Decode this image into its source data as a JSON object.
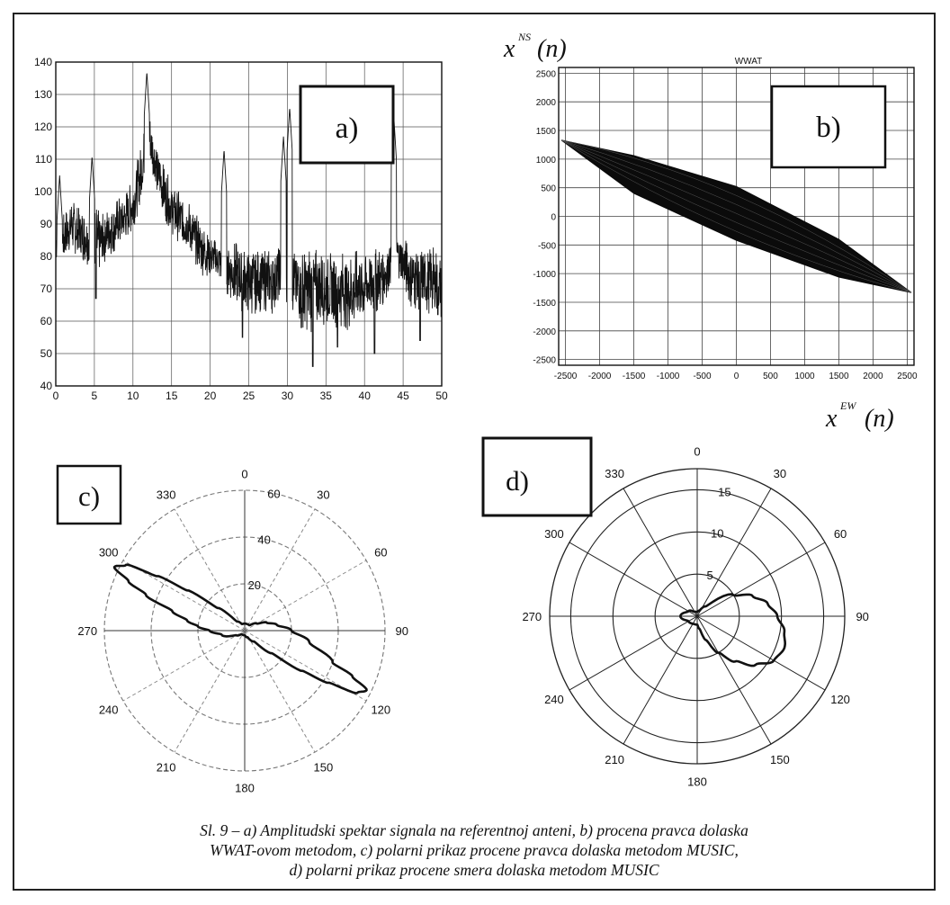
{
  "caption": {
    "line1": "Sl. 9 – a) Amplitudski spektar signala na referentnoj anteni, b) procena pravca dolaska",
    "line2": "WWAT-ovom  metodom, c) polarni prikaz procene pravca dolaska metodom MUSIC,",
    "line3": "d) polarni prikaz procene smera dolaska metodom MUSIC"
  },
  "chart_data": [
    {
      "id": "a",
      "panel_label": "a)",
      "type": "line",
      "xlim": [
        0,
        50
      ],
      "ylim": [
        40,
        140
      ],
      "xticks": [
        0,
        5,
        10,
        15,
        20,
        25,
        30,
        35,
        40,
        45,
        50
      ],
      "yticks": [
        40,
        50,
        60,
        70,
        80,
        90,
        100,
        110,
        120,
        130,
        140
      ],
      "grid": true,
      "envelope": {
        "x": [
          0,
          1,
          2,
          3,
          4,
          5,
          6,
          7,
          8,
          9,
          10,
          11,
          12,
          13,
          14,
          15,
          16,
          17,
          18,
          19,
          20,
          21,
          22,
          23,
          24,
          25,
          26,
          27,
          28,
          29,
          30,
          31,
          32,
          33,
          34,
          35,
          36,
          37,
          38,
          39,
          40,
          41,
          42,
          43,
          44,
          45,
          46,
          47,
          48,
          49,
          50
        ],
        "mean": [
          84,
          85,
          90,
          87,
          86,
          84,
          85,
          88,
          90,
          92,
          96,
          105,
          118,
          108,
          100,
          95,
          92,
          90,
          86,
          82,
          80,
          79,
          77,
          75,
          73,
          72,
          72,
          73,
          72,
          75,
          73,
          72,
          70,
          70,
          70,
          70,
          70,
          70,
          69,
          70,
          71,
          72,
          73,
          76,
          82,
          78,
          74,
          73,
          72,
          73,
          70
        ],
        "amp": [
          8,
          8,
          8,
          8,
          8,
          12,
          8,
          8,
          8,
          8,
          8,
          9,
          8,
          8,
          8,
          8,
          8,
          8,
          8,
          8,
          6,
          6,
          8,
          10,
          10,
          10,
          10,
          10,
          10,
          10,
          10,
          10,
          12,
          14,
          12,
          12,
          12,
          12,
          12,
          12,
          10,
          10,
          10,
          8,
          6,
          8,
          10,
          10,
          10,
          10,
          10
        ]
      },
      "peaks": [
        {
          "x": 0.5,
          "y": 105
        },
        {
          "x": 4.7,
          "y": 111
        },
        {
          "x": 11.8,
          "y": 137
        },
        {
          "x": 21.8,
          "y": 113
        },
        {
          "x": 29.5,
          "y": 117
        },
        {
          "x": 30.3,
          "y": 126
        },
        {
          "x": 43.8,
          "y": 123
        }
      ],
      "dips": [
        {
          "x": 5.2,
          "y": 67
        },
        {
          "x": 24.2,
          "y": 55
        },
        {
          "x": 31.8,
          "y": 58
        },
        {
          "x": 33.3,
          "y": 46
        },
        {
          "x": 36.5,
          "y": 52
        },
        {
          "x": 41.3,
          "y": 50
        },
        {
          "x": 47.2,
          "y": 54
        },
        {
          "x": 49.5,
          "y": 62
        }
      ]
    },
    {
      "id": "b",
      "panel_label": "b)",
      "type": "scatter",
      "title": "WWAT",
      "ylabel_base": "x",
      "ylabel_sup": "NS",
      "ylabel_arg": "(n)",
      "xlabel_base": "x",
      "xlabel_sup": "EW",
      "xlabel_arg": "(n)",
      "xlim": [
        -2600,
        2600
      ],
      "ylim": [
        -2600,
        2600
      ],
      "xticks": [
        -2500,
        -2000,
        -1500,
        -1000,
        -500,
        0,
        500,
        1000,
        1500,
        2000,
        2500
      ],
      "yticks": [
        2500,
        2000,
        1500,
        1000,
        500,
        0,
        -500,
        -1000,
        -1500,
        -2000,
        -2500
      ],
      "grid": true,
      "ellipse": {
        "endpoints": [
          [
            -2560,
            1330
          ],
          [
            2560,
            -1330
          ]
        ],
        "upper_edge": [
          [
            -2560,
            1330
          ],
          [
            -1500,
            1060
          ],
          [
            0,
            520
          ],
          [
            1500,
            -400
          ],
          [
            2560,
            -1330
          ]
        ],
        "lower_edge": [
          [
            2560,
            -1330
          ],
          [
            1500,
            -1060
          ],
          [
            0,
            -420
          ],
          [
            -1500,
            400
          ],
          [
            -2560,
            1330
          ]
        ]
      }
    },
    {
      "id": "c",
      "panel_label": "c)",
      "type": "polar",
      "rlim": [
        0,
        60
      ],
      "rticks": [
        20,
        40,
        60
      ],
      "angle_labels": [
        0,
        30,
        60,
        90,
        120,
        150,
        180,
        210,
        240,
        270,
        300,
        330
      ],
      "pattern": {
        "theta_deg": [
          0,
          20,
          40,
          60,
          70,
          80,
          90,
          100,
          110,
          113,
          116,
          119,
          122,
          125,
          130,
          140,
          160,
          180,
          200,
          220,
          240,
          260,
          270,
          275,
          280,
          285,
          290,
          293,
          296,
          299,
          302,
          305,
          310,
          320,
          340
        ],
        "r": [
          3,
          3,
          3,
          6,
          10,
          14,
          20,
          28,
          40,
          50,
          58,
          55,
          42,
          30,
          15,
          6,
          3,
          2,
          2,
          2,
          4,
          10,
          15,
          20,
          25,
          32,
          45,
          54,
          62,
          58,
          44,
          30,
          15,
          5,
          3
        ]
      }
    },
    {
      "id": "d",
      "panel_label": "d)",
      "type": "polar",
      "rlim": [
        0,
        17.5
      ],
      "rticks": [
        5,
        10,
        15
      ],
      "angle_labels": [
        0,
        30,
        60,
        90,
        120,
        150,
        180,
        210,
        240,
        270,
        300,
        330
      ],
      "pattern": {
        "theta_deg": [
          0,
          20,
          40,
          60,
          70,
          80,
          90,
          100,
          110,
          120,
          130,
          140,
          150,
          160,
          170,
          180,
          200,
          240,
          270,
          300,
          330
        ],
        "r": [
          0.5,
          0.7,
          1.5,
          5,
          7,
          8.5,
          9.5,
          10.5,
          11,
          10.5,
          9,
          7,
          5,
          3,
          1.5,
          1,
          1,
          1.2,
          2,
          1.2,
          0.6
        ]
      }
    }
  ]
}
